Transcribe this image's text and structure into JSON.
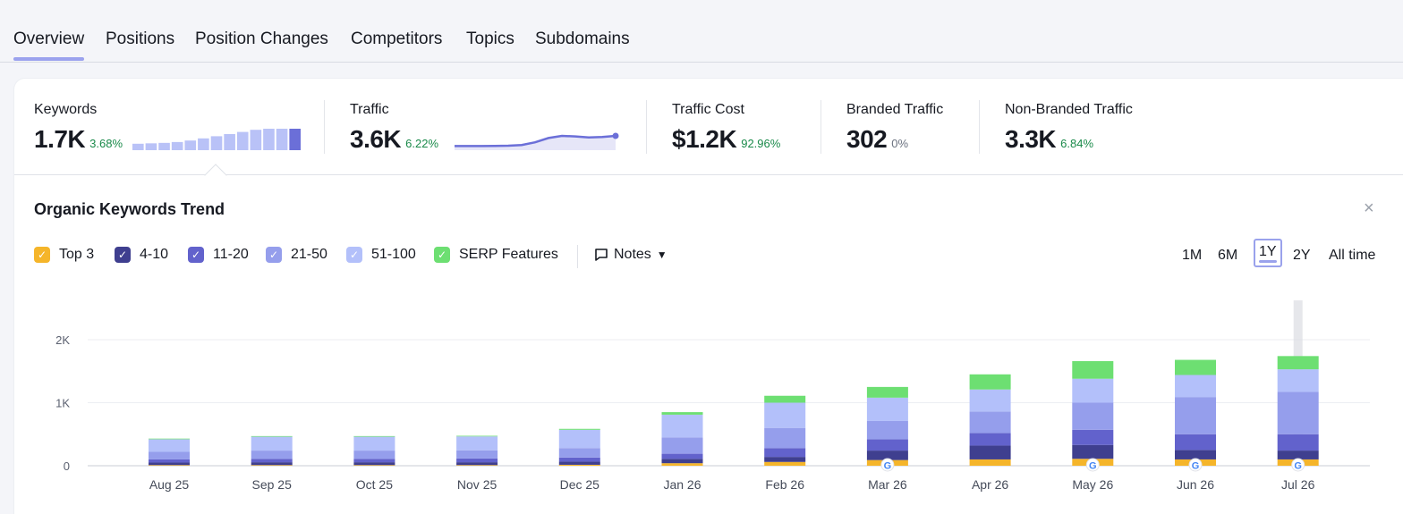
{
  "tabs": [
    {
      "label": "Overview",
      "active": true
    },
    {
      "label": "Positions"
    },
    {
      "label": "Position Changes"
    },
    {
      "label": "Competitors"
    },
    {
      "label": "Topics"
    },
    {
      "label": "Subdomains"
    }
  ],
  "metrics": {
    "keywords": {
      "label": "Keywords",
      "value": "1.7K",
      "change": "3.68%"
    },
    "traffic": {
      "label": "Traffic",
      "value": "3.6K",
      "change": "6.22%"
    },
    "traffic_cost": {
      "label": "Traffic Cost",
      "value": "$1.2K",
      "change": "92.96%"
    },
    "branded": {
      "label": "Branded Traffic",
      "value": "302",
      "change": "0%"
    },
    "non_branded": {
      "label": "Non-Branded Traffic",
      "value": "3.3K",
      "change": "6.84%"
    }
  },
  "keywords_spark": [
    0.3,
    0.32,
    0.34,
    0.38,
    0.45,
    0.55,
    0.65,
    0.75,
    0.85,
    0.95,
    1.0,
    1.0,
    1.0
  ],
  "traffic_spark": [
    0.05,
    0.05,
    0.05,
    0.06,
    0.08,
    0.15,
    0.4,
    0.8,
    1.0,
    0.95,
    0.85,
    0.9,
    1.0
  ],
  "trend": {
    "title": "Organic Keywords Trend",
    "close_label": "×",
    "legend": [
      {
        "label": "Top 3",
        "color": "#f5b52a"
      },
      {
        "label": "4-10",
        "color": "#3f3f8f"
      },
      {
        "label": "11-20",
        "color": "#6262cc"
      },
      {
        "label": "21-50",
        "color": "#959eec"
      },
      {
        "label": "51-100",
        "color": "#b3c0fa"
      },
      {
        "label": "SERP Features",
        "color": "#6ddf72"
      }
    ],
    "notes_label": "Notes",
    "ranges": [
      {
        "label": "1M"
      },
      {
        "label": "6M"
      },
      {
        "label": "1Y",
        "active": true
      },
      {
        "label": "2Y"
      },
      {
        "label": "All time"
      }
    ]
  },
  "chart_data": {
    "type": "bar",
    "stacked": true,
    "categories": [
      "Aug 25",
      "Sep 25",
      "Oct 25",
      "Nov 25",
      "Dec 25",
      "Jan 26",
      "Feb 26",
      "Mar 26",
      "Apr 26",
      "May 26",
      "Jun 26",
      "Jul 26"
    ],
    "ylim": [
      0,
      2000
    ],
    "yticks": [
      "0",
      "1K",
      "2K"
    ],
    "ytick_values": [
      0,
      1000,
      2000
    ],
    "grid": true,
    "series": [
      {
        "name": "Top 3",
        "color": "#f5b52a",
        "values": [
          10,
          10,
          10,
          10,
          15,
          40,
          60,
          90,
          100,
          110,
          100,
          100
        ]
      },
      {
        "name": "4-10",
        "color": "#3f3f8f",
        "values": [
          40,
          45,
          45,
          45,
          50,
          70,
          80,
          150,
          220,
          220,
          150,
          140
        ]
      },
      {
        "name": "11-20",
        "color": "#6262cc",
        "values": [
          50,
          55,
          55,
          60,
          65,
          80,
          140,
          180,
          200,
          240,
          250,
          260
        ]
      },
      {
        "name": "21-50",
        "color": "#959eec",
        "values": [
          120,
          130,
          130,
          130,
          150,
          260,
          320,
          290,
          340,
          430,
          590,
          670
        ]
      },
      {
        "name": "51-100",
        "color": "#b3c0fa",
        "values": [
          200,
          220,
          220,
          220,
          290,
          360,
          400,
          370,
          350,
          380,
          350,
          360
        ]
      },
      {
        "name": "SERP Features",
        "color": "#6ddf72",
        "values": [
          10,
          10,
          10,
          10,
          15,
          40,
          110,
          170,
          240,
          280,
          240,
          210
        ]
      }
    ],
    "google_markers": [
      "Mar 26",
      "May 26",
      "Jun 26",
      "Jul 26"
    ],
    "hover_category": "Jul 26"
  }
}
